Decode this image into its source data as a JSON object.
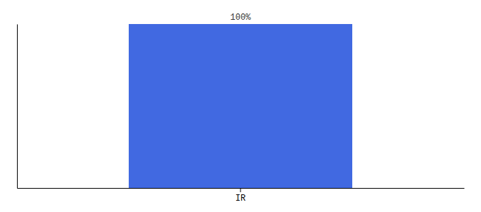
{
  "chart_data": {
    "type": "bar",
    "categories": [
      "IR"
    ],
    "values": [
      100
    ],
    "color": "#4169e1",
    "value_labels": [
      "100%"
    ],
    "data_labels": true,
    "ylim": [
      0,
      100
    ],
    "yticks": [],
    "tick_labels": "x"
  }
}
